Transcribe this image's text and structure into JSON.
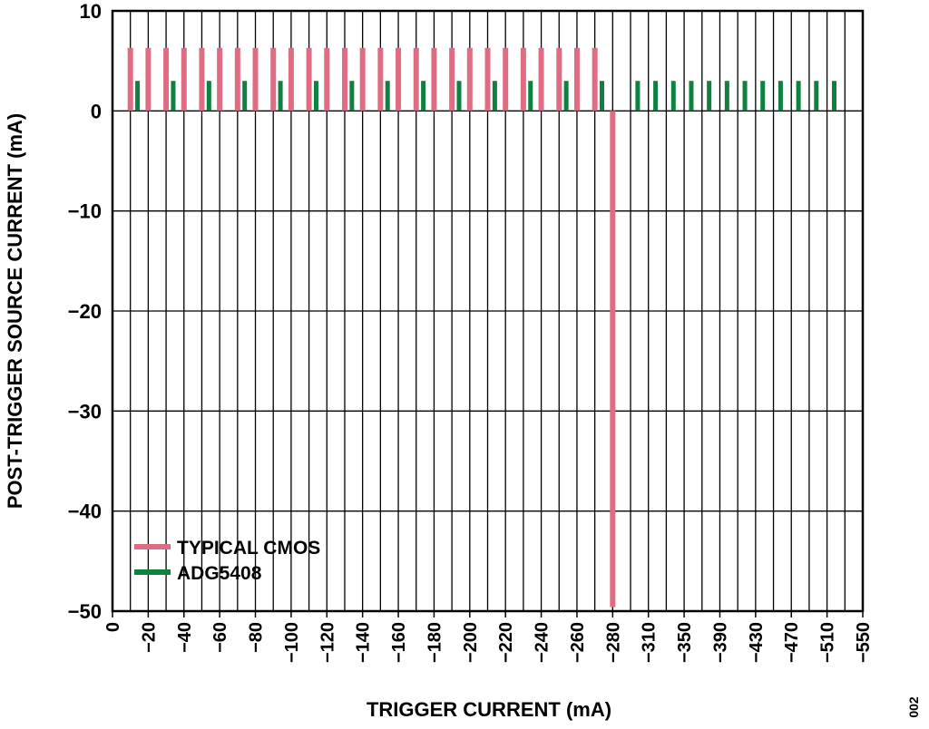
{
  "chart_data": {
    "type": "bar",
    "xlabel": "TRIGGER CURRENT (mA)",
    "ylabel": "POST-TRIGGER SOURCE CURRENT (mA)",
    "ylim": [
      -50,
      10
    ],
    "xlim": [
      0,
      42
    ],
    "grid": true,
    "legend_position": "bottom-left",
    "x_tick_labels": [
      "0",
      "−20",
      "−40",
      "−60",
      "−80",
      "−100",
      "−120",
      "−140",
      "−160",
      "−180",
      "−200",
      "−220",
      "−240",
      "−260",
      "−280",
      "−310",
      "−350",
      "−390",
      "−430",
      "−470",
      "−510",
      "−550"
    ],
    "y_tick_labels": [
      "10",
      "0",
      "−10",
      "−20",
      "−30",
      "−40",
      "−50"
    ],
    "y_tick_values": [
      10,
      0,
      -10,
      -20,
      -30,
      -40,
      -50
    ],
    "series": [
      {
        "name": "TYPICAL CMOS",
        "color": "#e06c84",
        "x": [
          1,
          2,
          3,
          4,
          5,
          6,
          7,
          8,
          9,
          10,
          11,
          12,
          13,
          14,
          15,
          16,
          17,
          18,
          19,
          20,
          21,
          22,
          23,
          24,
          25,
          26,
          27,
          28
        ],
        "values": [
          6.3,
          6.3,
          6.3,
          6.3,
          6.3,
          6.3,
          6.3,
          6.3,
          6.3,
          6.3,
          6.3,
          6.3,
          6.3,
          6.3,
          6.3,
          6.3,
          6.3,
          6.3,
          6.3,
          6.3,
          6.3,
          6.3,
          6.3,
          6.3,
          6.3,
          6.3,
          6.3,
          -49.6
        ]
      },
      {
        "name": "ADG5408",
        "color": "#0e8040",
        "x": [
          1.4,
          3.4,
          5.4,
          7.4,
          9.4,
          11.4,
          13.4,
          15.4,
          17.4,
          19.4,
          21.4,
          23.4,
          25.4,
          27.4,
          29.4,
          30.4,
          31.4,
          32.4,
          33.4,
          34.4,
          35.4,
          36.4,
          37.4,
          38.4,
          39.4,
          40.4
        ],
        "values": [
          3.0,
          3.0,
          3.0,
          3.0,
          3.0,
          3.0,
          3.0,
          3.0,
          3.0,
          3.0,
          3.0,
          3.0,
          3.0,
          3.0,
          3.0,
          3.0,
          3.0,
          3.0,
          3.0,
          3.0,
          3.0,
          3.0,
          3.0,
          3.0,
          3.0,
          3.0
        ]
      }
    ]
  },
  "side_note": "002"
}
